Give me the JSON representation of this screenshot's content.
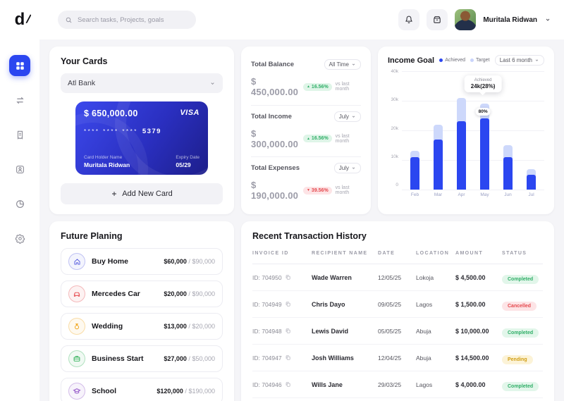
{
  "colors": {
    "primary": "#2b46f0",
    "achieved": "#2b46f0",
    "target": "#cdd8fb",
    "green": "#2fae67",
    "red": "#e5484d",
    "yellow": "#d19e14"
  },
  "app": {
    "logo_text": "d"
  },
  "topbar": {
    "search_placeholder": "Search tasks, Projects, goals",
    "user": {
      "name": "Muritala Ridwan"
    }
  },
  "sidebar": {
    "items": [
      {
        "icon": "dashboard-grid-icon",
        "active": true
      },
      {
        "icon": "transfer-arrows-icon",
        "active": false
      },
      {
        "icon": "receipt-icon",
        "active": false
      },
      {
        "icon": "contact-card-icon",
        "active": false
      },
      {
        "icon": "pie-chart-icon",
        "active": false
      },
      {
        "icon": "settings-gear-icon",
        "active": false
      }
    ]
  },
  "your_cards": {
    "title": "Your Cards",
    "bank_selected": "Atl Bank",
    "card": {
      "balance": "$ 650,000.00",
      "brand": "VISA",
      "mask": "****  ****  ****",
      "last4": "5379",
      "holder_label": "Card Holder Name",
      "holder_name": "Muritala Ridwan",
      "expiry_label": "Expiry Date",
      "expiry_value": "05/29"
    },
    "add_button": "Add New Card"
  },
  "stats": [
    {
      "label": "Total Balance",
      "period": "All Time",
      "value": "$ 450,000.00",
      "delta": "16.56%",
      "direction": "up",
      "compare": "vs last month"
    },
    {
      "label": "Total Income",
      "period": "July",
      "value": "$ 300,000.00",
      "delta": "16.56%",
      "direction": "up",
      "compare": "vs last month"
    },
    {
      "label": "Total Expenses",
      "period": "July",
      "value": "$ 190,000.00",
      "delta": "39.56%",
      "direction": "down",
      "compare": "vs last month"
    }
  ],
  "income_goal": {
    "title": "Income Goal",
    "period": "Last 6 month",
    "tooltip": {
      "label": "Achieved",
      "value": "24k(28%)",
      "badge": "80%"
    },
    "chart_data": {
      "type": "bar",
      "title": "Income Goal",
      "categories": [
        "Feb",
        "Mar",
        "Apr",
        "May",
        "Jun",
        "Jul"
      ],
      "series": [
        {
          "name": "Achieved",
          "values": [
            11000,
            17000,
            23000,
            24000,
            11000,
            5000
          ]
        },
        {
          "name": "Target",
          "values": [
            13000,
            22000,
            31000,
            29000,
            15000,
            7000
          ]
        }
      ],
      "xlabel": "",
      "ylabel": "",
      "ylim": [
        0,
        40000
      ],
      "yticks": [
        "0",
        "10k",
        "20k",
        "30k",
        "40k"
      ],
      "grid": true,
      "legend_position": "top"
    }
  },
  "future_planning": {
    "title": "Future Planing",
    "separator": "/",
    "items": [
      {
        "label": "Buy Home",
        "saved": "$60,000",
        "target": "$90,000",
        "icon": "home-icon",
        "color": "#5a5fe0"
      },
      {
        "label": "Mercedes Car",
        "saved": "$20,000",
        "target": "$90,000",
        "icon": "car-icon",
        "color": "#e5484d"
      },
      {
        "label": "Wedding",
        "saved": "$13,000",
        "target": "$20,000",
        "icon": "ring-icon",
        "color": "#f0a316"
      },
      {
        "label": "Business Start",
        "saved": "$27,000",
        "target": "$50,000",
        "icon": "briefcase-icon",
        "color": "#30b158"
      },
      {
        "label": "School",
        "saved": "$120,000",
        "target": "$190,000",
        "icon": "graduation-cap-icon",
        "color": "#8e4ec6"
      }
    ]
  },
  "transactions": {
    "title": "Recent Transaction History",
    "headers": [
      "INVOICE ID",
      "RECIPIENT NAME",
      "DATE",
      "LOCATION",
      "AMOUNT",
      "STATUS"
    ],
    "rows": [
      {
        "id": "ID: 704950",
        "name": "Wade Warren",
        "date": "12/05/25",
        "location": "Lokoja",
        "amount": "$ 4,500.00",
        "status": "Completed",
        "status_color": "green"
      },
      {
        "id": "ID: 704949",
        "name": "Chris Dayo",
        "date": "09/05/25",
        "location": "Lagos",
        "amount": "$ 1,500.00",
        "status": "Cancelled",
        "status_color": "red"
      },
      {
        "id": "ID: 704948",
        "name": "Lewis David",
        "date": "05/05/25",
        "location": "Abuja",
        "amount": "$ 10,000.00",
        "status": "Completed",
        "status_color": "green"
      },
      {
        "id": "ID: 704947",
        "name": "Josh Williams",
        "date": "12/04/25",
        "location": "Abuja",
        "amount": "$ 14,500.00",
        "status": "Pending",
        "status_color": "yellow"
      },
      {
        "id": "ID: 704946",
        "name": "Wills Jane",
        "date": "29/03/25",
        "location": "Lagos",
        "amount": "$ 4,000.00",
        "status": "Completed",
        "status_color": "green"
      }
    ]
  }
}
